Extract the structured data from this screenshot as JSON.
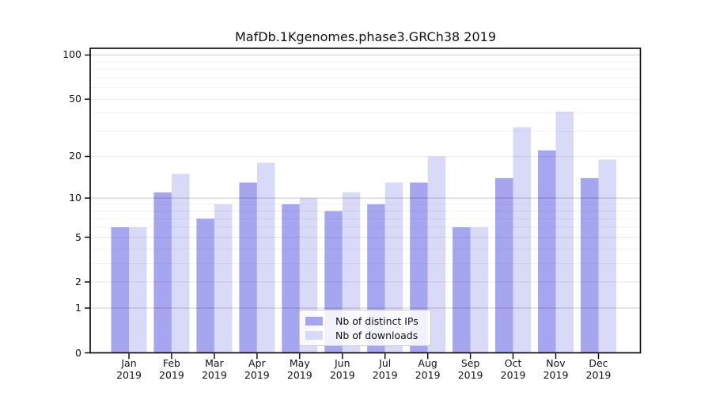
{
  "chart_data": {
    "type": "bar",
    "title": "MafDb.1Kgenomes.phase3.GRCh38 2019",
    "categories": [
      "Jan 2019",
      "Feb 2019",
      "Mar 2019",
      "Apr 2019",
      "May 2019",
      "Jun 2019",
      "Jul 2019",
      "Aug 2019",
      "Sep 2019",
      "Oct 2019",
      "Nov 2019",
      "Dec 2019"
    ],
    "series": [
      {
        "name": "Nb of distinct IPs",
        "color": "#a6a6f0",
        "values": [
          6,
          11,
          7,
          13,
          9,
          8,
          9,
          13,
          6,
          14,
          22,
          14
        ]
      },
      {
        "name": "Nb of downloads",
        "color": "#d9d9f8",
        "values": [
          6,
          15,
          9,
          18,
          10,
          11,
          13,
          20,
          6,
          32,
          41,
          19
        ]
      }
    ],
    "yscale": "log1p",
    "ylim": [
      0,
      111
    ],
    "yticks": [
      0,
      1,
      2,
      5,
      10,
      20,
      50,
      100
    ],
    "ytick_labels": [
      "0",
      "1",
      "2",
      "5",
      "10",
      "20",
      "50",
      "100"
    ],
    "grid": true,
    "legend": {
      "position": "lower-center",
      "entries": [
        "Nb of distinct IPs",
        "Nb of downloads"
      ]
    }
  }
}
